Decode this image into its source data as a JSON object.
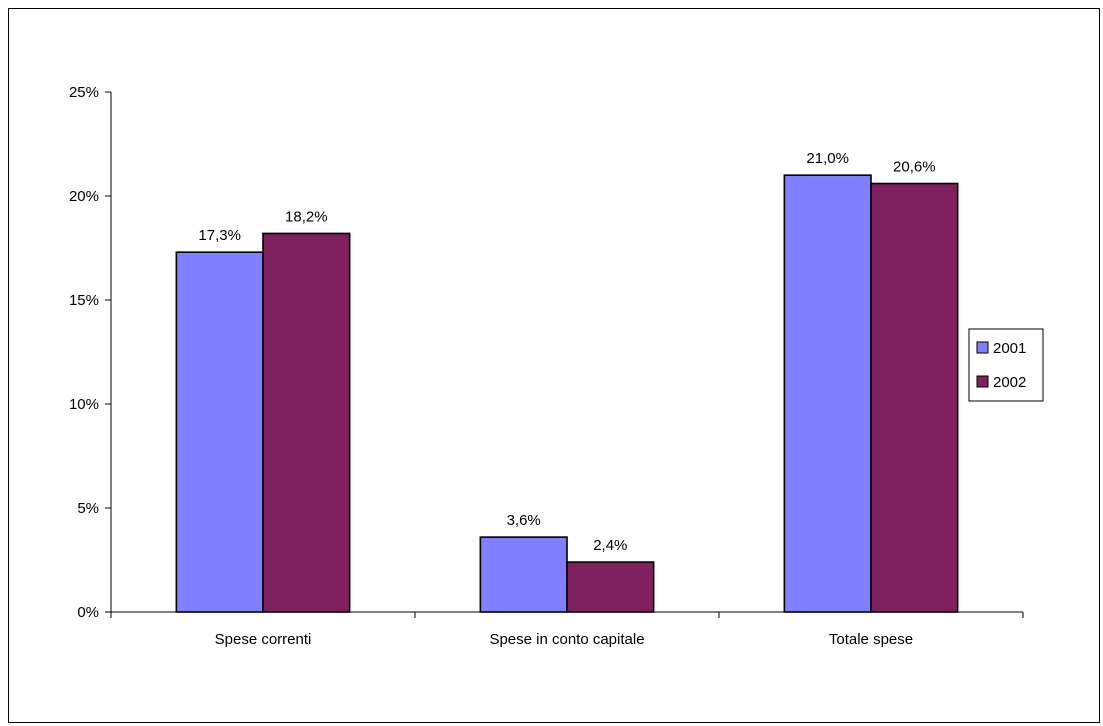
{
  "chart_data": {
    "type": "bar",
    "title": "",
    "xlabel": "",
    "ylabel": "",
    "categories": [
      "Spese correnti",
      "Spese in conto capitale",
      "Totale spese"
    ],
    "series": [
      {
        "name": "2001",
        "color": "#8080ff",
        "values": [
          17.3,
          3.6,
          21.0
        ],
        "labels": [
          "17,3%",
          "3,6%",
          "21,0%"
        ]
      },
      {
        "name": "2002",
        "color": "#80205e",
        "values": [
          18.2,
          2.4,
          20.6
        ],
        "labels": [
          "18,2%",
          "2,4%",
          "20,6%"
        ]
      }
    ],
    "ylim": [
      0,
      25
    ],
    "yticks": [
      0,
      5,
      10,
      15,
      20,
      25
    ],
    "ytick_labels": [
      "0%",
      "5%",
      "10%",
      "15%",
      "20%",
      "25%"
    ],
    "grid": false,
    "legend_position": "right"
  }
}
